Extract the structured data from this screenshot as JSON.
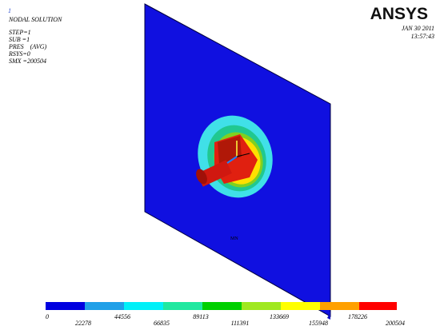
{
  "header": {
    "window_number": "1",
    "title": "NODAL SOLUTION",
    "info": [
      "STEP=1",
      "SUB =1",
      "PRES    (AVG)",
      "RSYS=0",
      "SMX =200504"
    ],
    "logo": "ANSYS",
    "date": "JAN 30 2011",
    "time": "13:57:43"
  },
  "plot": {
    "min_label": "MN"
  },
  "legend": {
    "labels": [
      "0",
      "22278",
      "44556",
      "66835",
      "89113",
      "111391",
      "133669",
      "155948",
      "178226",
      "200504"
    ]
  }
}
